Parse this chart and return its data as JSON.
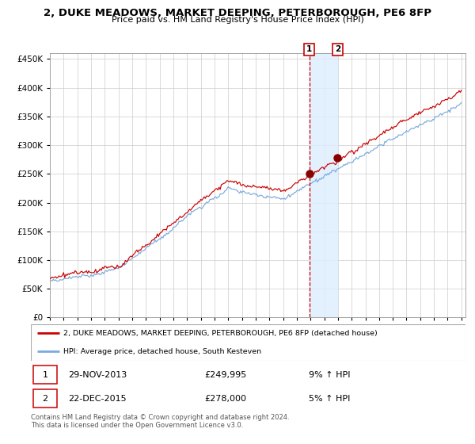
{
  "title": "2, DUKE MEADOWS, MARKET DEEPING, PETERBOROUGH, PE6 8FP",
  "subtitle": "Price paid vs. HM Land Registry's House Price Index (HPI)",
  "legend_line1": "2, DUKE MEADOWS, MARKET DEEPING, PETERBOROUGH, PE6 8FP (detached house)",
  "legend_line2": "HPI: Average price, detached house, South Kesteven",
  "transaction1_date": "29-NOV-2013",
  "transaction1_price": "£249,995",
  "transaction1_hpi": "9% ↑ HPI",
  "transaction2_date": "22-DEC-2015",
  "transaction2_price": "£278,000",
  "transaction2_hpi": "5% ↑ HPI",
  "footer": "Contains HM Land Registry data © Crown copyright and database right 2024.\nThis data is licensed under the Open Government Licence v3.0.",
  "red_line_color": "#cc0000",
  "blue_line_color": "#7aaadd",
  "dot_color": "#880000",
  "vline_color": "#cc0000",
  "shade_color": "#ddeeff",
  "grid_color": "#cccccc",
  "ylim": [
    0,
    460000
  ],
  "yticks": [
    0,
    50000,
    100000,
    150000,
    200000,
    250000,
    300000,
    350000,
    400000,
    450000
  ],
  "transaction1_x": 2013.91,
  "transaction2_x": 2015.97,
  "transaction1_y": 249995,
  "transaction2_y": 278000,
  "xmin": 1995,
  "xmax": 2025.3
}
